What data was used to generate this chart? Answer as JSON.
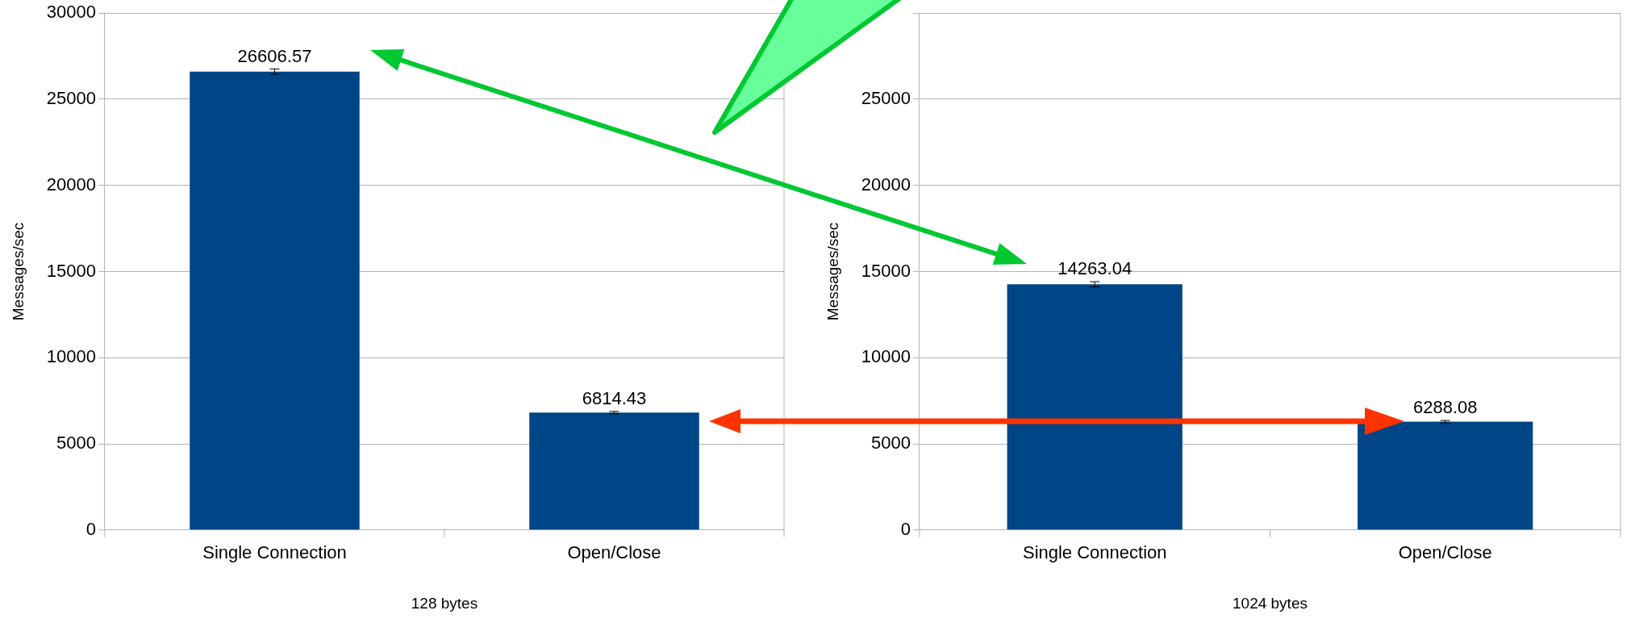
{
  "chart_data": [
    {
      "type": "bar",
      "categories": [
        "Single Connection",
        "Open/Close"
      ],
      "xlabel": "128 bytes",
      "ylabel": "Messages/sec",
      "color": "#004586",
      "values": [
        26606.57,
        6814.43
      ],
      "errors": [
        150,
        70
      ],
      "data_labels": true,
      "ylim": [
        0,
        30000
      ],
      "yticks": [
        0,
        5000,
        10000,
        15000,
        20000,
        25000,
        30000
      ],
      "grid": "y",
      "legend": false
    },
    {
      "type": "bar",
      "categories": [
        "Single Connection",
        "Open/Close"
      ],
      "xlabel": "1024 bytes",
      "ylabel": "Messages/sec",
      "color": "#004586",
      "values": [
        14263.04,
        6288.08
      ],
      "errors": [
        150,
        70
      ],
      "data_labels": true,
      "ylim": [
        0,
        30000
      ],
      "yticks": [
        0,
        5000,
        10000,
        15000,
        20000,
        25000,
        {
          "value": 30000,
          "label": null
        }
      ],
      "grid": "y",
      "legend": false
    }
  ]
}
